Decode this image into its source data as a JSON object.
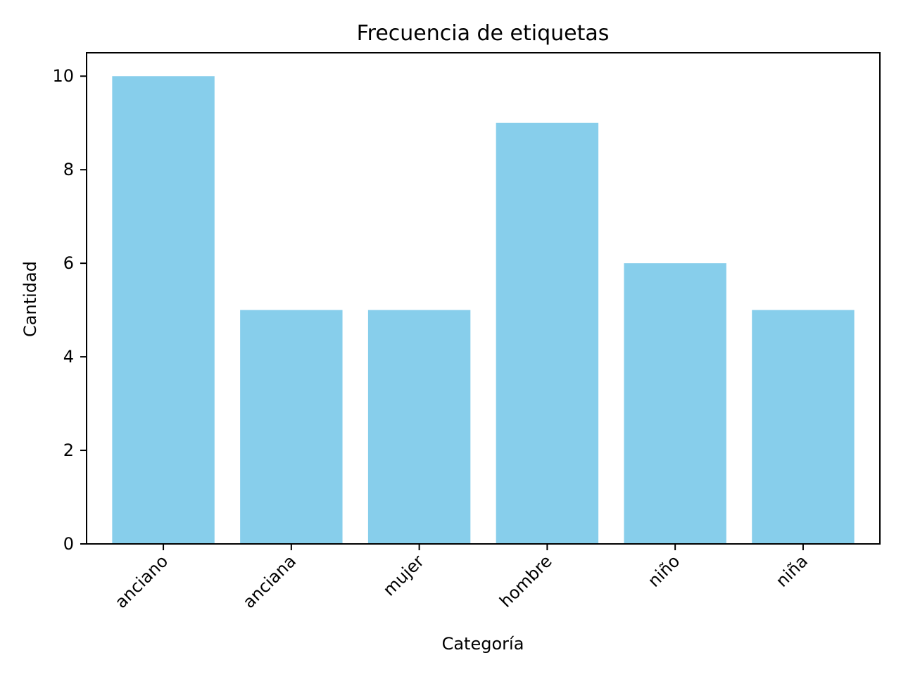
{
  "chart_data": {
    "type": "bar",
    "title": "Frecuencia de etiquetas",
    "xlabel": "Categoría",
    "ylabel": "Cantidad",
    "categories": [
      "anciano",
      "anciana",
      "mujer",
      "hombre",
      "niño",
      "niña"
    ],
    "values": [
      10,
      5,
      5,
      9,
      6,
      5
    ],
    "ylim": [
      0,
      10.5
    ],
    "yticks": [
      "0",
      "2",
      "4",
      "6",
      "8",
      "10"
    ],
    "grid": false,
    "legend": "none",
    "bar_color": "#87CEEB",
    "x_tick_rotation": "45"
  }
}
